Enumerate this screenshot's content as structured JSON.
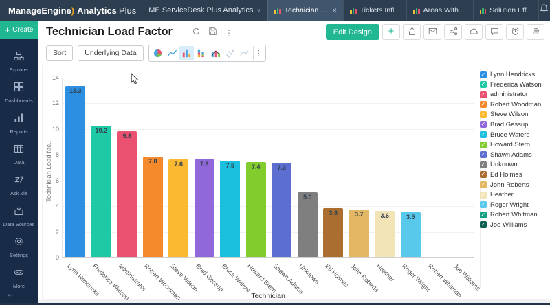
{
  "topbar": {
    "brand": {
      "manageengine": "ManageEngine",
      "swoosh": ")",
      "product_bold": "Analytics",
      "product_light": "Plus"
    },
    "workspace_selector": "ME ServiceDesk Plus Analytics",
    "tabs": [
      {
        "label": "Technician ...",
        "active": true,
        "closable": true
      },
      {
        "label": "Tickets Infl...",
        "active": false,
        "closable": false
      },
      {
        "label": "Areas With ...",
        "active": false,
        "closable": false
      },
      {
        "label": "Solution Eff...",
        "active": false,
        "closable": false
      }
    ],
    "icons": [
      "notifications-icon",
      "settings-icon",
      "help-icon",
      "avatar"
    ]
  },
  "sidebar": {
    "create_label": "Create",
    "items": [
      {
        "label": "Explorer",
        "icon": "explorer-icon"
      },
      {
        "label": "Dashboards",
        "icon": "dashboards-icon"
      },
      {
        "label": "Reports",
        "icon": "reports-icon"
      },
      {
        "label": "Data",
        "icon": "data-icon"
      },
      {
        "label": "Ask Zia",
        "icon": "ask-zia-icon"
      },
      {
        "label": "Data Sources",
        "icon": "data-sources-icon"
      },
      {
        "label": "Settings",
        "icon": "settings-icon"
      },
      {
        "label": "More",
        "icon": "more-icon"
      }
    ]
  },
  "report": {
    "title": "Technician Load Factor",
    "title_icons": [
      "refresh-icon",
      "save-icon",
      "more-vert-icon"
    ],
    "sort_label": "Sort",
    "underlying_data_label": "Underlying Data",
    "chart_type_icons": [
      {
        "name": "pie-chart-icon",
        "active": false
      },
      {
        "name": "line-chart-icon",
        "active": false
      },
      {
        "name": "bar-chart-icon",
        "active": true
      },
      {
        "name": "stacked-bar-icon",
        "active": false
      },
      {
        "name": "bar-line-icon",
        "active": false
      },
      {
        "name": "scatter-icon",
        "active": false
      },
      {
        "name": "map-chart-icon",
        "active": false
      }
    ],
    "edit_design_label": "Edit Design",
    "action_icons": [
      "add-icon",
      "export-icon",
      "email-icon",
      "share-icon",
      "publish-icon",
      "comment-icon",
      "alert-icon",
      "report-settings-icon"
    ]
  },
  "chart_data": {
    "type": "bar",
    "title": "Technician Load Factor",
    "xlabel": "Technician",
    "ylabel": "Technician Load fac..",
    "ylim": [
      0,
      14
    ],
    "ytick_step": 2,
    "grid": true,
    "legend_position": "right",
    "categories": [
      "Lynn Hendricks",
      "Frederica Watson",
      "administrator",
      "Robert Woodman",
      "Steve Wilson",
      "Brad Gessup",
      "Bruce Waters",
      "Howard Stern",
      "Shawn Adams",
      "Unknown",
      "Ed Holmes",
      "John Roberts",
      "Heather",
      "Roger Wright",
      "Robert Whitman",
      "Joe Williams"
    ],
    "values": [
      13.3,
      10.2,
      9.8,
      7.8,
      7.6,
      7.6,
      7.5,
      7.4,
      7.3,
      5.0,
      3.8,
      3.7,
      3.6,
      3.5,
      0,
      0
    ],
    "bar_value_labels": [
      "13.3",
      "10.2",
      "9.8",
      "7.8",
      "7.6",
      "7.6",
      "7.5",
      "7.4",
      "7.3",
      "5.0",
      "3.8",
      "3.7",
      "3.6",
      "3.5",
      "",
      ""
    ],
    "colors": [
      "#2d8fe2",
      "#1ec9a6",
      "#ea5171",
      "#f58a2d",
      "#fbb931",
      "#9068d9",
      "#1ac0dd",
      "#83cc2e",
      "#5c6fd1",
      "#7f7f7f",
      "#a96e30",
      "#e3b764",
      "#f3e4b8",
      "#58c9eb",
      "#13a083",
      "#0d5f51"
    ]
  },
  "colors": {
    "accent_green": "#21b793",
    "topbar_bg": "#2c3e50",
    "sidebar_bg": "#182b47",
    "active_chart_type_bg": "#d8ecfa"
  }
}
